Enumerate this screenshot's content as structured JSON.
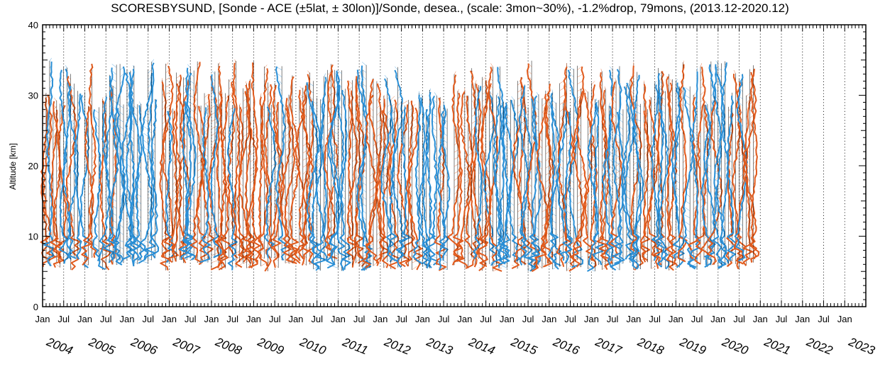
{
  "chart_data": {
    "type": "line",
    "title": "SCORESBYSUND, [Sonde - ACE (±5lat, ± 30lon)]/Sonde, desea., (scale: 3mon~30%),  -1.2%drop,  79mons, (2013.12-2020.12)",
    "ylabel": "Altitude [km]",
    "xlabel": "",
    "ylim": [
      0,
      40
    ],
    "y_ticks": [
      "0",
      "10",
      "20",
      "30",
      "40"
    ],
    "xlim": [
      "2004-01",
      "2023-07"
    ],
    "x_tick_labels": [
      "Jan",
      "Jul",
      "Jan",
      "Jul",
      "Jan",
      "Jul",
      "Jan",
      "Jul",
      "Jan",
      "Jul",
      "Jan",
      "Jul",
      "Jan",
      "Jul",
      "Jan",
      "Jul",
      "Jan",
      "Jul",
      "Jan",
      "Jul",
      "Jan",
      "Jul",
      "Jan",
      "Jul",
      "Jan",
      "Jul",
      "Jan",
      "Jul",
      "Jan",
      "Jul",
      "Jan",
      "Jul",
      "Jan",
      "Jul",
      "Jan",
      "Jul",
      "Jan",
      "Jul",
      "Jan"
    ],
    "year_labels": [
      "2004",
      "2005",
      "2006",
      "2007",
      "2008",
      "2009",
      "2010",
      "2011",
      "2012",
      "2013",
      "2014",
      "2015",
      "2016",
      "2017",
      "2018",
      "2019",
      "2020",
      "2021",
      "2022",
      "2023"
    ],
    "grid": "vertical dotted lines at each half-year",
    "scale_percent_per_3_months": 30,
    "colors": {
      "positive": "#e05a1c",
      "negative": "#2a8fd6",
      "baseline": "#000000",
      "grid": "#000000"
    },
    "profiles_month_range": [
      "2004-01",
      "2020-12"
    ]
  }
}
